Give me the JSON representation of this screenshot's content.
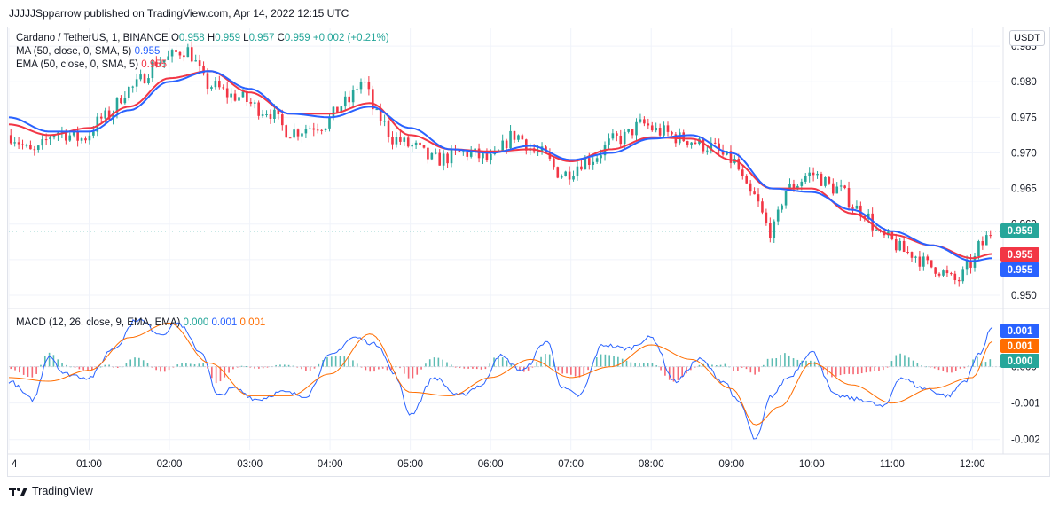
{
  "header": {
    "publisher": "JJJJJSpparrow published on TradingView.com, Apr 14, 2022 12:15 UTC"
  },
  "footer": {
    "brand": "TradingView"
  },
  "price_legend": {
    "symbol": "Cardano / TetherUS, 1, BINANCE",
    "o_label": "O",
    "o": "0.958",
    "h_label": "H",
    "h": "0.959",
    "l_label": "L",
    "l": "0.957",
    "c_label": "C",
    "c": "0.959",
    "change": "+0.002 (+0.21%)",
    "ma_label": "MA (50, close, 0, SMA, 5)",
    "ma_value": "0.955",
    "ema_label": "EMA (50, close, 0, SMA, 5)",
    "ema_value": "0.955"
  },
  "macd_legend": {
    "label": "MACD (12, 26, close, 9, EMA, EMA)",
    "v1": "0.000",
    "v2": "0.001",
    "v3": "0.001"
  },
  "currency": "USDT",
  "colors": {
    "up": "#26a69a",
    "down": "#f23645",
    "ma": "#2962ff",
    "ema": "#f23645",
    "macd": "#2962ff",
    "signal": "#ff6d00",
    "hist_up": "#26a69a",
    "hist_down": "#f23645"
  },
  "chart_data": [
    {
      "type": "candlestick",
      "title": "Cardano / TetherUS, 1, BINANCE",
      "x_ticks": [
        "4",
        "01:00",
        "02:00",
        "03:00",
        "04:00",
        "05:00",
        "06:00",
        "07:00",
        "08:00",
        "09:00",
        "10:00",
        "11:00",
        "12:00"
      ],
      "y_ticks": [
        "0.985",
        "0.980",
        "0.975",
        "0.970",
        "0.965",
        "0.960",
        "0.955",
        "0.950"
      ],
      "ylim": [
        0.9485,
        0.9875
      ],
      "x_range_hours": [
        0.0,
        12.35
      ],
      "close_anchors": {
        "x": [
          0.0,
          0.3,
          0.6,
          0.9,
          1.2,
          1.5,
          1.9,
          2.2,
          2.5,
          2.8,
          3.2,
          3.5,
          3.9,
          4.2,
          4.4,
          4.6,
          4.8,
          5.0,
          5.3,
          5.7,
          6.0,
          6.3,
          6.6,
          6.9,
          7.2,
          7.6,
          7.9,
          8.1,
          8.4,
          8.7,
          9.0,
          9.25,
          9.5,
          9.7,
          10.0,
          10.3,
          10.6,
          10.9,
          11.2,
          11.5,
          11.8,
          12.0,
          12.1,
          12.25
        ],
        "y": [
          0.9725,
          0.97,
          0.973,
          0.972,
          0.975,
          0.979,
          0.983,
          0.9845,
          0.9795,
          0.978,
          0.976,
          0.973,
          0.974,
          0.977,
          0.98,
          0.975,
          0.972,
          0.971,
          0.969,
          0.97,
          0.969,
          0.9725,
          0.97,
          0.967,
          0.969,
          0.972,
          0.974,
          0.973,
          0.972,
          0.971,
          0.969,
          0.964,
          0.959,
          0.965,
          0.967,
          0.965,
          0.962,
          0.958,
          0.956,
          0.954,
          0.952,
          0.9545,
          0.957,
          0.959
        ]
      },
      "last_price": "0.959",
      "series": [
        {
          "name": "MA (50, close, 0, SMA, 5)",
          "last": "0.955",
          "x": [
            0.0,
            0.5,
            1.0,
            1.5,
            2.0,
            2.5,
            3.0,
            3.5,
            4.0,
            4.5,
            5.0,
            5.5,
            6.0,
            6.5,
            7.0,
            7.5,
            8.0,
            8.5,
            9.0,
            9.5,
            10.0,
            10.5,
            11.0,
            11.5,
            12.0,
            12.25
          ],
          "y": [
            0.975,
            0.973,
            0.973,
            0.976,
            0.98,
            0.9815,
            0.979,
            0.9755,
            0.975,
            0.9765,
            0.9735,
            0.9705,
            0.97,
            0.971,
            0.969,
            0.97,
            0.972,
            0.9725,
            0.97,
            0.965,
            0.9645,
            0.962,
            0.959,
            0.957,
            0.9548,
            0.9552
          ]
        },
        {
          "name": "EMA (50, close, 0, SMA, 5)",
          "last": "0.955",
          "x": [
            0.0,
            0.5,
            1.0,
            1.5,
            2.0,
            2.5,
            3.0,
            3.5,
            4.0,
            4.5,
            5.0,
            5.5,
            6.0,
            6.5,
            7.0,
            7.5,
            8.0,
            8.5,
            9.0,
            9.5,
            10.0,
            10.5,
            11.0,
            11.5,
            12.0,
            12.25
          ],
          "y": [
            0.974,
            0.9725,
            0.9735,
            0.9765,
            0.9805,
            0.9815,
            0.9785,
            0.9755,
            0.9755,
            0.977,
            0.9725,
            0.9705,
            0.9702,
            0.9705,
            0.9688,
            0.9705,
            0.9722,
            0.972,
            0.969,
            0.965,
            0.965,
            0.9615,
            0.9585,
            0.957,
            0.9552,
            0.9558
          ]
        }
      ]
    },
    {
      "type": "line",
      "title": "MACD (12, 26, close, 9, EMA, EMA)",
      "y_ticks": [
        "0.000",
        "-0.001",
        "-0.002"
      ],
      "y_tick_values": [
        0.0,
        -0.001,
        -0.002
      ],
      "ylim": [
        -0.0023,
        0.00155
      ],
      "series": [
        {
          "name": "MACD",
          "last": "0.001",
          "x": [
            0.0,
            0.3,
            0.5,
            0.7,
            1.0,
            1.3,
            1.6,
            1.9,
            2.1,
            2.4,
            2.6,
            2.8,
            3.1,
            3.4,
            3.7,
            4.0,
            4.3,
            4.6,
            4.8,
            5.0,
            5.3,
            5.6,
            5.9,
            6.1,
            6.4,
            6.7,
            6.9,
            7.1,
            7.4,
            7.7,
            8.0,
            8.3,
            8.6,
            8.9,
            9.1,
            9.3,
            9.5,
            9.7,
            10.0,
            10.3,
            10.6,
            10.9,
            11.1,
            11.4,
            11.7,
            11.9,
            12.1,
            12.25
          ],
          "y": [
            -0.0004,
            -0.0009,
            0.0003,
            -0.0002,
            -0.0003,
            0.0005,
            0.0013,
            0.0009,
            0.0012,
            0.0004,
            -0.0008,
            -0.0006,
            -0.0009,
            -0.0007,
            -0.0008,
            0.0003,
            0.0008,
            0.0006,
            -0.0002,
            -0.0013,
            -0.0003,
            -0.0008,
            -0.0005,
            0.0003,
            -0.0001,
            0.0007,
            -0.0006,
            -0.0008,
            0.0006,
            0.0005,
            0.0008,
            -0.0004,
            0.0002,
            -0.0004,
            -0.001,
            -0.002,
            -0.0008,
            -0.0003,
            0.0004,
            -0.0008,
            -0.0009,
            -0.0011,
            -0.0003,
            -0.0006,
            -0.0008,
            -0.0004,
            0.0004,
            0.0011
          ]
        },
        {
          "name": "Signal",
          "last": "0.001",
          "x": [
            0.0,
            0.5,
            1.0,
            1.5,
            2.0,
            2.5,
            3.0,
            3.5,
            4.0,
            4.5,
            5.0,
            5.5,
            6.0,
            6.5,
            7.0,
            7.5,
            8.0,
            8.5,
            9.0,
            9.3,
            9.6,
            10.0,
            10.5,
            11.0,
            11.5,
            12.0,
            12.25
          ],
          "y": [
            -0.0003,
            -0.0004,
            -0.0001,
            0.0008,
            0.0012,
            0.0001,
            -0.0008,
            -0.0008,
            -0.0002,
            0.0009,
            -0.0007,
            -0.0008,
            -0.0003,
            0.0002,
            -0.0003,
            0.0,
            0.0006,
            0.0002,
            -0.0006,
            -0.0016,
            -0.0011,
            0.0001,
            -0.0005,
            -0.001,
            -0.0006,
            -0.0003,
            0.0007
          ]
        },
        {
          "name": "Histogram",
          "last": "0.000",
          "type": "bar",
          "note_values_from": "MACD minus Signal"
        }
      ]
    }
  ]
}
